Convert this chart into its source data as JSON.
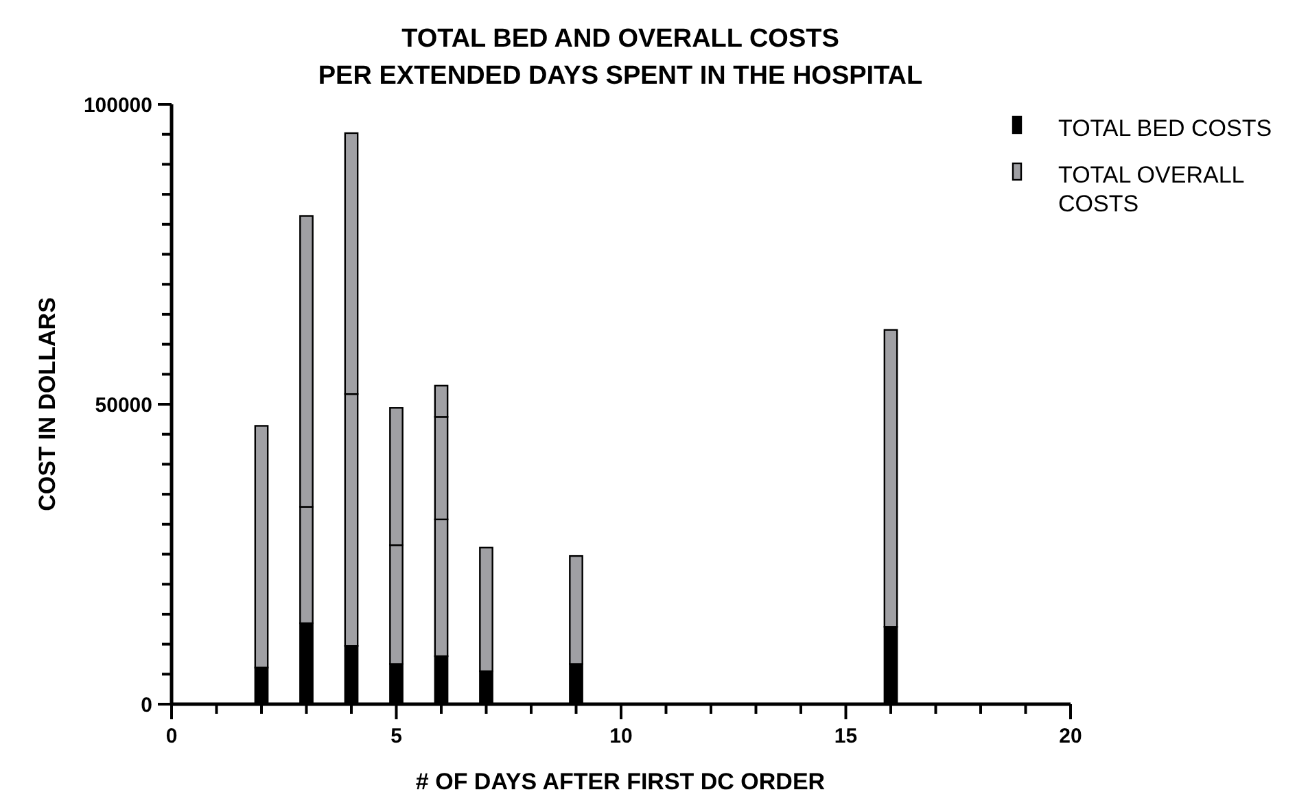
{
  "chart_data": {
    "type": "bar",
    "stacked": true,
    "title": "TOTAL BED AND OVERALL COSTS\nPER EXTENDED DAYS SPENT IN THE HOSPITAL",
    "xlabel": "# OF DAYS AFTER FIRST DC ORDER",
    "ylabel": "COST IN DOLLARS",
    "x": [
      2,
      3,
      4,
      5,
      6,
      7,
      9,
      16
    ],
    "xlim": [
      0,
      20
    ],
    "xticks": [
      0,
      {
        "value": 1,
        "label": null
      },
      {
        "value": 2,
        "label": null
      },
      {
        "value": 3,
        "label": null
      },
      {
        "value": 4,
        "label": null
      },
      5,
      {
        "value": 6,
        "label": null
      },
      {
        "value": 7,
        "label": null
      },
      {
        "value": 8,
        "label": null
      },
      {
        "value": 9,
        "label": null
      },
      10,
      {
        "value": 11,
        "label": null
      },
      {
        "value": 12,
        "label": null
      },
      {
        "value": 13,
        "label": null
      },
      {
        "value": 14,
        "label": null
      },
      15,
      {
        "value": 16,
        "label": null
      },
      {
        "value": 17,
        "label": null
      },
      {
        "value": 18,
        "label": null
      },
      {
        "value": 19,
        "label": null
      },
      20
    ],
    "ylim": [
      0,
      100000
    ],
    "yticks": [
      0,
      {
        "value": 5000,
        "label": null
      },
      {
        "value": 10000,
        "label": null
      },
      {
        "value": 15000,
        "label": null
      },
      {
        "value": 20000,
        "label": null
      },
      {
        "value": 25000,
        "label": null
      },
      {
        "value": 30000,
        "label": null
      },
      {
        "value": 35000,
        "label": null
      },
      {
        "value": 40000,
        "label": null
      },
      {
        "value": 45000,
        "label": null
      },
      50000,
      {
        "value": 55000,
        "label": null
      },
      {
        "value": 60000,
        "label": null
      },
      {
        "value": 65000,
        "label": null
      },
      {
        "value": 70000,
        "label": null
      },
      {
        "value": 75000,
        "label": null
      },
      {
        "value": 80000,
        "label": null
      },
      {
        "value": 85000,
        "label": null
      },
      {
        "value": 90000,
        "label": null
      },
      {
        "value": 95000,
        "label": null
      },
      100000
    ],
    "legend": "top right",
    "grid": false,
    "series": [
      {
        "name": "TOTAL BED COSTS",
        "color": "#000000",
        "values": [
          6100,
          13500,
          9700,
          6700,
          8000,
          5500,
          6700,
          12900
        ]
      },
      {
        "name": "TOTAL OVERALL COSTS",
        "color": "#a0a0a4",
        "values": [
          40300,
          19400,
          42000,
          19800,
          22800,
          20600,
          18000,
          49500
        ]
      },
      {
        "color": "#a0a0a4",
        "values": [
          null,
          48500,
          43500,
          22900,
          17100,
          null,
          null,
          null
        ]
      },
      {
        "color": "#a0a0a4",
        "values": [
          null,
          null,
          null,
          null,
          5200,
          null,
          null,
          null
        ]
      }
    ]
  }
}
